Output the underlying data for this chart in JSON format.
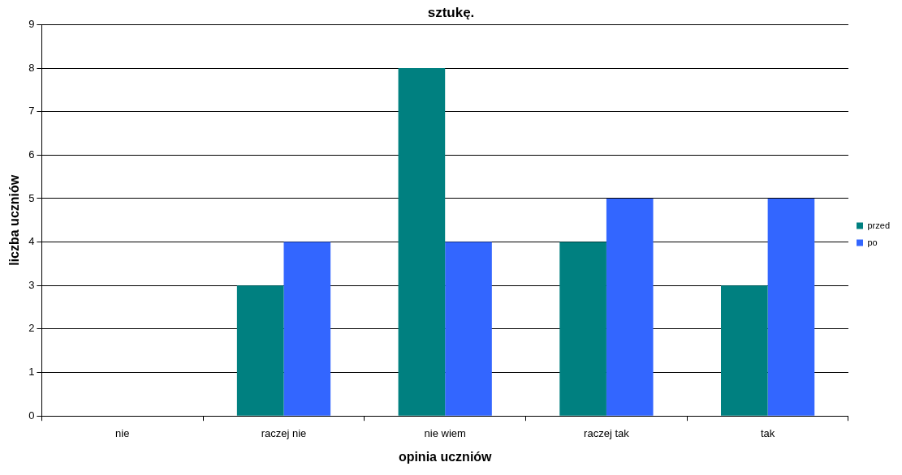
{
  "chart_data": {
    "type": "bar",
    "title": "sztukę.",
    "xlabel": "opinia uczniów",
    "ylabel": "liczba uczniów",
    "categories": [
      "nie",
      "raczej nie",
      "nie wiem",
      "raczej tak",
      "tak"
    ],
    "series": [
      {
        "name": "przed",
        "color": "#008080",
        "values": [
          0,
          3,
          8,
          4,
          3
        ]
      },
      {
        "name": "po",
        "color": "#3366ff",
        "values": [
          0,
          4,
          4,
          5,
          5
        ]
      }
    ],
    "ylim": [
      0,
      9
    ],
    "yticks": [
      0,
      1,
      2,
      3,
      4,
      5,
      6,
      7,
      8,
      9
    ],
    "grid": "y",
    "legend": "right"
  }
}
